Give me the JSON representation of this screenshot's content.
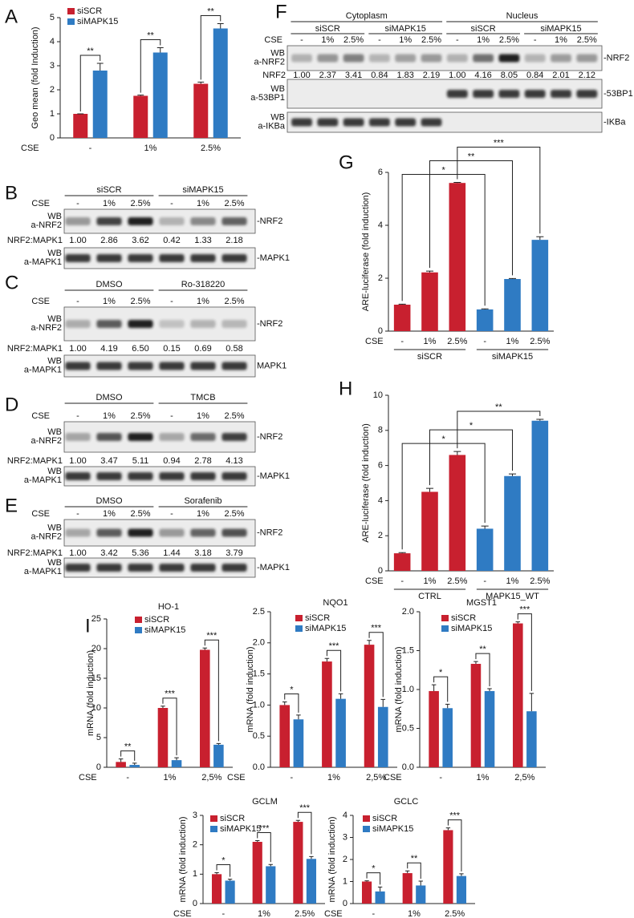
{
  "chart_data": [
    {
      "panel": "A",
      "type": "bar",
      "ylabel": "Geo mean (fold Induction)",
      "xlabel": "CSE",
      "categories": [
        "-",
        "1%",
        "2.5%"
      ],
      "series": [
        {
          "name": "siSCR",
          "color": "#c8202f",
          "values": [
            1.0,
            1.75,
            2.25
          ],
          "errors": [
            0,
            0.03,
            0.07
          ]
        },
        {
          "name": "siMAPK15",
          "color": "#2f7bc3",
          "values": [
            2.8,
            3.55,
            4.55
          ],
          "errors": [
            0.3,
            0.2,
            0.2
          ]
        }
      ],
      "ylim": [
        0,
        5
      ],
      "yticks": [
        0,
        1,
        2,
        3,
        4,
        5
      ],
      "significance": [
        "**",
        "**",
        "**"
      ],
      "legend": "upper left"
    },
    {
      "panel": "G",
      "type": "bar",
      "ylabel": "ARE-luciferase (fold induction)",
      "xlabel": "CSE",
      "categories": [
        "-",
        "1%",
        "2.5%"
      ],
      "series": [
        {
          "name": "siSCR",
          "color": "#c8202f",
          "values": [
            1.0,
            2.22,
            5.6
          ],
          "errors": [
            0.02,
            0.05,
            0.02
          ]
        },
        {
          "name": "siMAPK15",
          "color": "#2f7bc3",
          "values": [
            0.82,
            1.97,
            3.45
          ],
          "errors": [
            0.02,
            0.02,
            0.12
          ]
        }
      ],
      "ylim": [
        0,
        6
      ],
      "yticks": [
        0,
        2,
        4,
        6
      ],
      "significance": [
        "*",
        "**",
        "***"
      ]
    },
    {
      "panel": "H",
      "type": "bar",
      "ylabel": "ARE-luciferase (fold induction)",
      "xlabel": "CSE",
      "categories": [
        "-",
        "1%",
        "2.5%"
      ],
      "series": [
        {
          "name": "CTRL",
          "color": "#c8202f",
          "values": [
            1.0,
            4.5,
            6.6
          ],
          "errors": [
            0.04,
            0.2,
            0.2
          ]
        },
        {
          "name": "MAPK15_WT",
          "color": "#2f7bc3",
          "values": [
            2.4,
            5.4,
            8.55
          ],
          "errors": [
            0.15,
            0.12,
            0.08
          ]
        }
      ],
      "ylim": [
        0,
        10
      ],
      "yticks": [
        0,
        2,
        4,
        6,
        8,
        10
      ],
      "significance": [
        "*",
        "*",
        "**"
      ]
    },
    {
      "panel": "I",
      "type": "bar",
      "title": "HO-1",
      "ylabel": "mRNA (fold induction)",
      "xlabel": "CSE",
      "categories": [
        "-",
        "1%",
        "2,5%"
      ],
      "series": [
        {
          "name": "siSCR",
          "color": "#c8202f",
          "values": [
            0.9,
            10.0,
            19.8
          ],
          "errors": [
            0.5,
            0.3,
            0.3
          ]
        },
        {
          "name": "siMAPK15",
          "color": "#2f7bc3",
          "values": [
            0.4,
            1.2,
            3.8
          ],
          "errors": [
            0.3,
            0.4,
            0.2
          ]
        }
      ],
      "ylim": [
        0,
        25
      ],
      "yticks": [
        0,
        5,
        10,
        15,
        20,
        25
      ],
      "significance": [
        "**",
        "***",
        "***"
      ],
      "legend": "upper left"
    },
    {
      "type": "bar",
      "title": "NQO1",
      "ylabel": "mRNA (fold induction)",
      "xlabel": "CSE",
      "categories": [
        "-",
        "1%",
        "2,5%"
      ],
      "series": [
        {
          "name": "siSCR",
          "color": "#c8202f",
          "values": [
            1.0,
            1.7,
            1.97
          ],
          "errors": [
            0.05,
            0.05,
            0.07
          ]
        },
        {
          "name": "siMAPK15",
          "color": "#2f7bc3",
          "values": [
            0.77,
            1.1,
            0.97
          ],
          "errors": [
            0.07,
            0.08,
            0.12
          ]
        }
      ],
      "ylim": [
        0,
        2.5
      ],
      "yticks": [
        {
          "value": 0,
          "label": "0.0"
        },
        0.5,
        {
          "value": 1,
          "label": "1.0"
        },
        1.5,
        {
          "value": 2,
          "label": "2.0"
        },
        2.5
      ],
      "significance": [
        "*",
        "***",
        "***"
      ],
      "legend": "upper left"
    },
    {
      "type": "bar",
      "title": "MGST1",
      "ylabel": "mRNA (fold induction)",
      "xlabel": "CSE",
      "categories": [
        "-",
        "1%",
        "2,5%"
      ],
      "series": [
        {
          "name": "siSCR",
          "color": "#c8202f",
          "values": [
            0.98,
            1.33,
            1.85
          ],
          "errors": [
            0.08,
            0.03,
            0.02
          ]
        },
        {
          "name": "siMAPK15",
          "color": "#2f7bc3",
          "values": [
            0.76,
            0.98,
            0.72
          ],
          "errors": [
            0.05,
            0.03,
            0.23
          ]
        }
      ],
      "ylim": [
        0,
        2
      ],
      "yticks": [
        {
          "value": 0,
          "label": "0.0"
        },
        0.5,
        {
          "value": 1,
          "label": "1.0"
        },
        1.5,
        {
          "value": 2,
          "label": "2.0"
        }
      ],
      "significance": [
        "*",
        "**",
        "***"
      ],
      "legend": "upper left"
    },
    {
      "type": "bar",
      "title": "GCLM",
      "ylabel": "mRNA (fold induction)",
      "xlabel": "CSE",
      "categories": [
        "-",
        "1%",
        "2.5%"
      ],
      "series": [
        {
          "name": "siSCR",
          "color": "#c8202f",
          "values": [
            1.0,
            2.1,
            2.78
          ],
          "errors": [
            0.05,
            0.04,
            0.05
          ]
        },
        {
          "name": "siMAPK15",
          "color": "#2f7bc3",
          "values": [
            0.78,
            1.27,
            1.52
          ],
          "errors": [
            0.05,
            0.06,
            0.08
          ]
        }
      ],
      "ylim": [
        0,
        3
      ],
      "yticks": [
        0,
        1,
        2,
        3
      ],
      "significance": [
        "*",
        "***",
        "***"
      ],
      "legend": "upper left"
    },
    {
      "type": "bar",
      "title": "GCLC",
      "ylabel": "mRNA (fold induction)",
      "xlabel": "CSE",
      "categories": [
        "-",
        "1%",
        "2.5%"
      ],
      "series": [
        {
          "name": "siSCR",
          "color": "#c8202f",
          "values": [
            1.0,
            1.38,
            3.33
          ],
          "errors": [
            0.03,
            0.1,
            0.1
          ]
        },
        {
          "name": "siMAPK15",
          "color": "#2f7bc3",
          "values": [
            0.55,
            0.82,
            1.25
          ],
          "errors": [
            0.2,
            0.2,
            0.1
          ]
        }
      ],
      "ylim": [
        0,
        4
      ],
      "yticks": [
        0,
        1,
        2,
        3,
        4
      ],
      "significance": [
        "*",
        "**",
        "***"
      ],
      "legend": "upper left"
    }
  ],
  "blots": [
    {
      "panel": "B",
      "groups": [
        "siSCR",
        "siMAPK15"
      ],
      "cse": "CSE",
      "lanes": [
        "-",
        "1%",
        "2.5%",
        "-",
        "1%",
        "2.5%"
      ],
      "rows": [
        {
          "label": [
            "WB",
            "a-NRF2"
          ],
          "band": "-NRF2",
          "quant_label": "NRF2:MAPK1",
          "quant": [
            "1.00",
            "2.86",
            "3.62",
            "0.42",
            "1.33",
            "2.18"
          ]
        },
        {
          "label": [
            "WB",
            "a-MAPK1"
          ],
          "band": "-MAPK1"
        }
      ]
    },
    {
      "panel": "C",
      "groups": [
        "DMSO",
        "Ro-318220"
      ],
      "cse": "CSE",
      "lanes": [
        "-",
        "1%",
        "2.5%",
        "-",
        "1%",
        "2.5%"
      ],
      "rows": [
        {
          "label": [
            "WB",
            "a-NRF2"
          ],
          "band": "-NRF2",
          "quant_label": "NRF2:MAPK1",
          "quant": [
            "1.00",
            "4.19",
            "6.50",
            "0.15",
            "0.69",
            "0.58"
          ]
        },
        {
          "label": [
            "WB",
            "a-MAPK1"
          ],
          "band": "MAPK1"
        }
      ]
    },
    {
      "panel": "D",
      "groups": [
        "DMSO",
        "TMCB"
      ],
      "cse": "CSE",
      "lanes": [
        "-",
        "1%",
        "2.5%",
        "-",
        "1%",
        "2.5%"
      ],
      "rows": [
        {
          "label": [
            "WB",
            "a-NRF2"
          ],
          "band": "-NRF2",
          "quant_label": "NRF2:MAPK1",
          "quant": [
            "1.00",
            "3.47",
            "5.11",
            "0.94",
            "2.78",
            "4.13"
          ]
        },
        {
          "label": [
            "WB",
            "a-MAPK1"
          ],
          "band": "-MAPK1"
        }
      ]
    },
    {
      "panel": "E",
      "groups": [
        "DMSO",
        "Sorafenib"
      ],
      "cse": "CSE",
      "lanes": [
        "-",
        "1%",
        "2.5%",
        "-",
        "1%",
        "2.5%"
      ],
      "rows": [
        {
          "label": [
            "WB",
            "a-NRF2"
          ],
          "band": "-NRF2",
          "quant_label": "NRF2:MAPK1",
          "quant": [
            "1.00",
            "3.42",
            "5.36",
            "1.44",
            "3.18",
            "3.79"
          ]
        },
        {
          "label": [
            "WB",
            "a-MAPK1"
          ],
          "band": "-MAPK1"
        }
      ]
    },
    {
      "panel": "F",
      "compartments": [
        "Cytoplasm",
        "Nucleus"
      ],
      "groups": [
        "siSCR",
        "siMAPK15",
        "siSCR",
        "siMAPK15"
      ],
      "cse": "CSE",
      "lanes": [
        "-",
        "1%",
        "2.5%",
        "-",
        "1%",
        "2.5%",
        "-",
        "1%",
        "2.5%",
        "-",
        "1%",
        "2.5%"
      ],
      "rows": [
        {
          "label": [
            "WB",
            "a-NRF2"
          ],
          "band": "-NRF2",
          "quant_label": "NRF2",
          "quant": [
            "1.00",
            "2.37",
            "3.41",
            "0.84",
            "1.83",
            "2.19",
            "1.00",
            "4.16",
            "8.05",
            "0.84",
            "2.01",
            "2.12"
          ]
        },
        {
          "label": [
            "WB",
            "a-53BP1"
          ],
          "band": "-53BP1"
        },
        {
          "label": [
            "WB",
            "a-IKBa"
          ],
          "band": "-IKBa"
        }
      ]
    }
  ]
}
